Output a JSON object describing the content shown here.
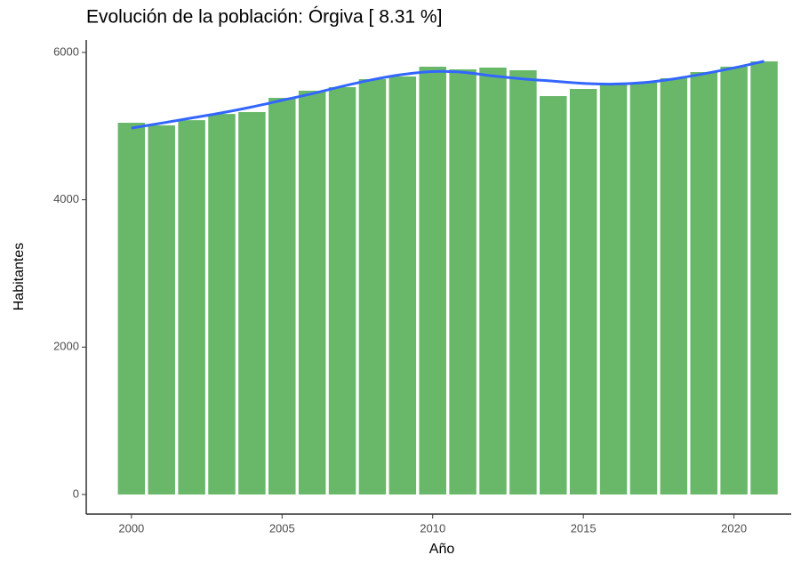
{
  "chart_data": {
    "type": "bar",
    "title": "Evolución de la población: Órgiva [ 8.31 %]",
    "x_label": "Año",
    "y_label": "Habitantes",
    "x": [
      2000,
      2001,
      2002,
      2003,
      2004,
      2005,
      2006,
      2007,
      2008,
      2009,
      2010,
      2011,
      2012,
      2013,
      2014,
      2015,
      2016,
      2017,
      2018,
      2019,
      2020,
      2021
    ],
    "values": [
      5045,
      5010,
      5080,
      5165,
      5190,
      5383,
      5480,
      5528,
      5637,
      5673,
      5806,
      5770,
      5794,
      5758,
      5407,
      5504,
      5564,
      5589,
      5649,
      5733,
      5806,
      5878
    ],
    "color": "#69b86a",
    "trend": {
      "color": "#3366ff",
      "values": [
        4973,
        5040,
        5110,
        5180,
        5260,
        5350,
        5440,
        5540,
        5630,
        5700,
        5740,
        5730,
        5680,
        5640,
        5610,
        5580,
        5570,
        5590,
        5640,
        5710,
        5790,
        5880
      ]
    },
    "xlim": [
      1998.5,
      2021.9
    ],
    "ylim": [
      -266,
      6168
    ],
    "xticks": [
      2000,
      2005,
      2010,
      2015,
      2020
    ],
    "yticks": [
      0,
      2000,
      4000,
      6000
    ]
  }
}
